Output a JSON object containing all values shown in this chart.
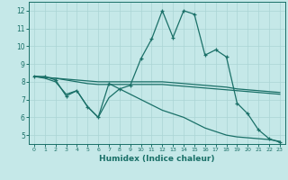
{
  "xlabel": "Humidex (Indice chaleur)",
  "bg_color": "#c5e8e8",
  "grid_color": "#aad4d4",
  "line_color": "#1a7068",
  "xlim": [
    -0.5,
    23.5
  ],
  "ylim": [
    4.5,
    12.5
  ],
  "xticks": [
    0,
    1,
    2,
    3,
    4,
    5,
    6,
    7,
    8,
    9,
    10,
    11,
    12,
    13,
    14,
    15,
    16,
    17,
    18,
    19,
    20,
    21,
    22,
    23
  ],
  "yticks": [
    5,
    6,
    7,
    8,
    9,
    10,
    11,
    12
  ],
  "series": {
    "line1_x": [
      0,
      1,
      2,
      3,
      4,
      5,
      6,
      7,
      8,
      9,
      10,
      11,
      12,
      13,
      14,
      15,
      16,
      17,
      18,
      19,
      20,
      21,
      22,
      23
    ],
    "line1_y": [
      8.3,
      8.3,
      8.1,
      7.2,
      7.5,
      6.6,
      6.0,
      7.9,
      7.6,
      7.8,
      9.3,
      10.4,
      12.0,
      10.5,
      12.0,
      11.8,
      9.5,
      9.8,
      9.4,
      6.8,
      6.2,
      5.3,
      4.8,
      4.6
    ],
    "line2_x": [
      0,
      1,
      2,
      3,
      4,
      5,
      6,
      7,
      8,
      9,
      10,
      11,
      12,
      13,
      14,
      15,
      16,
      17,
      18,
      19,
      20,
      21,
      22,
      23
    ],
    "line2_y": [
      8.3,
      8.25,
      8.2,
      8.15,
      8.1,
      8.05,
      8.0,
      8.0,
      8.0,
      8.0,
      8.0,
      8.0,
      8.0,
      7.95,
      7.9,
      7.85,
      7.8,
      7.75,
      7.7,
      7.6,
      7.55,
      7.5,
      7.45,
      7.4
    ],
    "line3_x": [
      0,
      1,
      2,
      3,
      4,
      5,
      6,
      7,
      8,
      9,
      10,
      11,
      12,
      13,
      14,
      15,
      16,
      17,
      18,
      19,
      20,
      21,
      22,
      23
    ],
    "line3_y": [
      8.3,
      8.25,
      8.2,
      8.1,
      8.0,
      7.9,
      7.85,
      7.85,
      7.85,
      7.85,
      7.85,
      7.85,
      7.85,
      7.8,
      7.75,
      7.7,
      7.65,
      7.6,
      7.55,
      7.5,
      7.45,
      7.4,
      7.35,
      7.3
    ],
    "line4_x": [
      0,
      1,
      2,
      3,
      4,
      5,
      6,
      7,
      8,
      9,
      10,
      11,
      12,
      13,
      14,
      15,
      16,
      17,
      18,
      19,
      20,
      21,
      22,
      23
    ],
    "line4_y": [
      8.3,
      8.2,
      8.0,
      7.3,
      7.5,
      6.6,
      6.0,
      7.1,
      7.6,
      7.3,
      7.0,
      6.7,
      6.4,
      6.2,
      6.0,
      5.7,
      5.4,
      5.2,
      5.0,
      4.9,
      4.85,
      4.8,
      4.75,
      4.65
    ]
  }
}
